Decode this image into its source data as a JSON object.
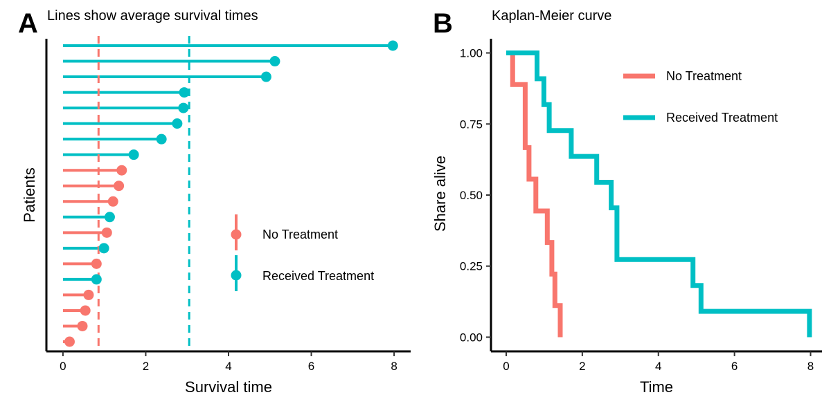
{
  "colors": {
    "no_treatment": "#F8766D",
    "received_treatment": "#00BFC4"
  },
  "chart_data": [
    {
      "panel_label": "A",
      "type": "scatter",
      "subtype": "lollipop",
      "title": "Lines show average survival times",
      "xlabel": "Survival time",
      "ylabel": "Patients",
      "xlim": [
        -0.4,
        8.4
      ],
      "xticks": [
        0,
        2,
        4,
        6,
        8
      ],
      "legend_position": "right, inside plot",
      "legend": [
        {
          "label": "No Treatment",
          "color": "#F8766D"
        },
        {
          "label": "Received Treatment",
          "color": "#00BFC4"
        }
      ],
      "reference_lines": [
        {
          "group": "No Treatment",
          "x": 0.86,
          "style": "dashed",
          "meaning": "average survival time"
        },
        {
          "group": "Received Treatment",
          "x": 3.05,
          "style": "dashed",
          "meaning": "average survival time"
        }
      ],
      "series": [
        {
          "name": "No Treatment",
          "values": [
            0.16,
            0.47,
            0.54,
            0.62,
            0.81,
            1.06,
            1.21,
            1.35,
            1.42
          ]
        },
        {
          "name": "Received Treatment",
          "values": [
            0.81,
            0.99,
            1.13,
            1.71,
            2.38,
            2.76,
            2.91,
            2.93,
            4.91,
            5.12,
            7.97
          ]
        }
      ],
      "points_sorted_bottom_to_top": [
        {
          "group": "No Treatment",
          "value": 0.16
        },
        {
          "group": "No Treatment",
          "value": 0.47
        },
        {
          "group": "No Treatment",
          "value": 0.54
        },
        {
          "group": "No Treatment",
          "value": 0.62
        },
        {
          "group": "Received Treatment",
          "value": 0.81
        },
        {
          "group": "No Treatment",
          "value": 0.81
        },
        {
          "group": "Received Treatment",
          "value": 0.99
        },
        {
          "group": "No Treatment",
          "value": 1.06
        },
        {
          "group": "Received Treatment",
          "value": 1.13
        },
        {
          "group": "No Treatment",
          "value": 1.21
        },
        {
          "group": "No Treatment",
          "value": 1.35
        },
        {
          "group": "No Treatment",
          "value": 1.42
        },
        {
          "group": "Received Treatment",
          "value": 1.71
        },
        {
          "group": "Received Treatment",
          "value": 2.38
        },
        {
          "group": "Received Treatment",
          "value": 2.76
        },
        {
          "group": "Received Treatment",
          "value": 2.91
        },
        {
          "group": "Received Treatment",
          "value": 2.93
        },
        {
          "group": "Received Treatment",
          "value": 4.91
        },
        {
          "group": "Received Treatment",
          "value": 5.12
        },
        {
          "group": "Received Treatment",
          "value": 7.97
        }
      ]
    },
    {
      "panel_label": "B",
      "type": "line",
      "subtype": "step",
      "title": "Kaplan-Meier curve",
      "xlabel": "Time",
      "ylabel": "Share alive",
      "xlim": [
        -0.4,
        8.3
      ],
      "ylim": [
        -0.05,
        1.05
      ],
      "xticks": [
        0,
        2,
        4,
        6,
        8
      ],
      "yticks": [
        0.0,
        0.25,
        0.5,
        0.75,
        1.0
      ],
      "ytick_labels": [
        "0.00",
        "0.25",
        "0.50",
        "0.75",
        "1.00"
      ],
      "legend_position": "top-right, inside plot",
      "series": [
        {
          "name": "No Treatment",
          "color": "#F8766D",
          "points": [
            {
              "x": 0.0,
              "y": 1.0
            },
            {
              "x": 0.17,
              "y": 1.0
            },
            {
              "x": 0.17,
              "y": 0.889
            },
            {
              "x": 0.5,
              "y": 0.889
            },
            {
              "x": 0.5,
              "y": 0.667
            },
            {
              "x": 0.6,
              "y": 0.667
            },
            {
              "x": 0.6,
              "y": 0.556
            },
            {
              "x": 0.78,
              "y": 0.556
            },
            {
              "x": 0.78,
              "y": 0.444
            },
            {
              "x": 1.08,
              "y": 0.444
            },
            {
              "x": 1.08,
              "y": 0.333
            },
            {
              "x": 1.2,
              "y": 0.333
            },
            {
              "x": 1.2,
              "y": 0.222
            },
            {
              "x": 1.28,
              "y": 0.222
            },
            {
              "x": 1.28,
              "y": 0.111
            },
            {
              "x": 1.42,
              "y": 0.111
            },
            {
              "x": 1.42,
              "y": 0.0
            }
          ]
        },
        {
          "name": "Received Treatment",
          "color": "#00BFC4",
          "points": [
            {
              "x": 0.0,
              "y": 1.0
            },
            {
              "x": 0.81,
              "y": 1.0
            },
            {
              "x": 0.81,
              "y": 0.909
            },
            {
              "x": 0.99,
              "y": 0.909
            },
            {
              "x": 0.99,
              "y": 0.818
            },
            {
              "x": 1.13,
              "y": 0.818
            },
            {
              "x": 1.13,
              "y": 0.727
            },
            {
              "x": 1.71,
              "y": 0.727
            },
            {
              "x": 1.71,
              "y": 0.636
            },
            {
              "x": 2.38,
              "y": 0.636
            },
            {
              "x": 2.38,
              "y": 0.545
            },
            {
              "x": 2.76,
              "y": 0.545
            },
            {
              "x": 2.76,
              "y": 0.455
            },
            {
              "x": 2.91,
              "y": 0.455
            },
            {
              "x": 2.91,
              "y": 0.273
            },
            {
              "x": 4.91,
              "y": 0.273
            },
            {
              "x": 4.91,
              "y": 0.182
            },
            {
              "x": 5.12,
              "y": 0.182
            },
            {
              "x": 5.12,
              "y": 0.091
            },
            {
              "x": 7.97,
              "y": 0.091
            },
            {
              "x": 7.97,
              "y": 0.0
            }
          ]
        }
      ]
    }
  ]
}
